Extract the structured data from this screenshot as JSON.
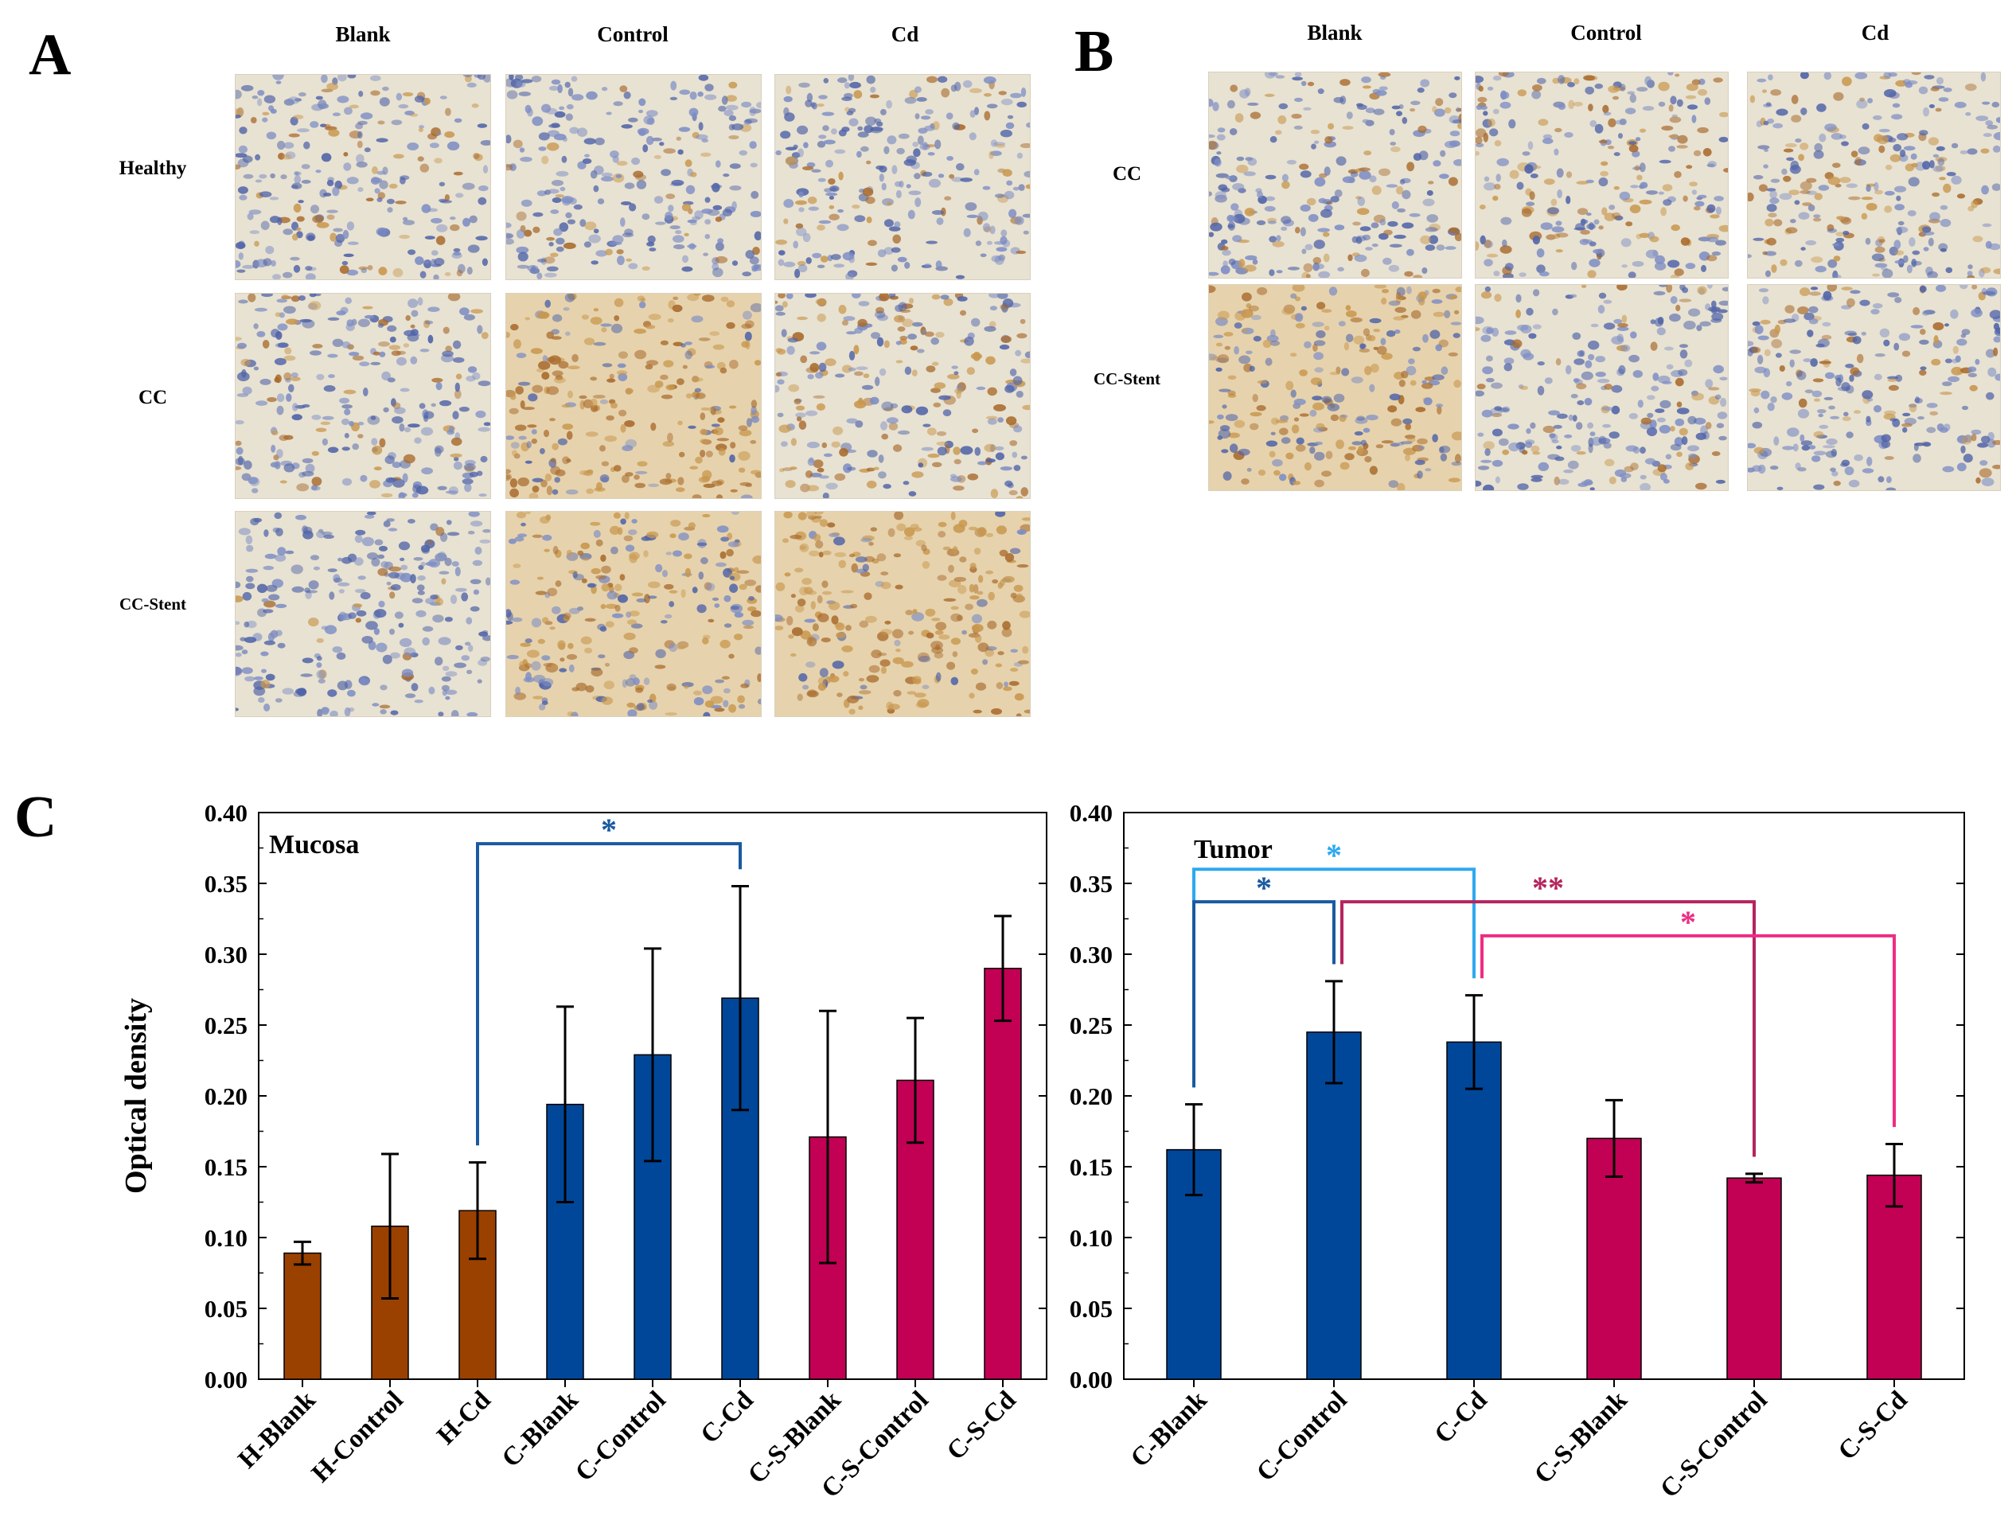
{
  "panels": {
    "A": {
      "letter": "A",
      "columns": [
        "Blank",
        "Control",
        "Cd"
      ],
      "rows": [
        "Healthy",
        "CC",
        "CC-Stent"
      ]
    },
    "B": {
      "letter": "B",
      "columns": [
        "Blank",
        "Control",
        "Cd"
      ],
      "rows": [
        "CC",
        "CC-Stent"
      ]
    },
    "C": {
      "letter": "C"
    }
  },
  "colors": {
    "healthy": "#9b4100",
    "cc": "#00479a",
    "ccstent": "#c20054",
    "sig_dark_blue": "#1a5aa0",
    "sig_light_blue": "#2ea8f0",
    "sig_magenta": "#b5245d",
    "sig_pink": "#ee2c83"
  },
  "chart_data": [
    {
      "type": "bar",
      "panel_label": "Mucosa",
      "ylabel": "Optical density",
      "ylim": [
        0,
        0.4
      ],
      "yticks": [
        "0.00",
        "0.05",
        "0.10",
        "0.15",
        "0.20",
        "0.25",
        "0.30",
        "0.35",
        "0.40"
      ],
      "categories": [
        "H-Blank",
        "H-Control",
        "H-Cd",
        "C-Blank",
        "C-Control",
        "C-Cd",
        "C-S-Blank",
        "C-S-Control",
        "C-S-Cd"
      ],
      "values": [
        0.089,
        0.108,
        0.119,
        0.194,
        0.229,
        0.269,
        0.171,
        0.211,
        0.29
      ],
      "errors": [
        0.008,
        0.051,
        0.034,
        0.069,
        0.075,
        0.079,
        0.089,
        0.044,
        0.037
      ],
      "groups": [
        "healthy",
        "healthy",
        "healthy",
        "cc",
        "cc",
        "cc",
        "ccstent",
        "ccstent",
        "ccstent"
      ],
      "significance": [
        {
          "from": "H-Cd",
          "to": "C-Cd",
          "label": "*",
          "color": "sig_dark_blue",
          "level": 0.378
        }
      ]
    },
    {
      "type": "bar",
      "panel_label": "Tumor",
      "ylabel": "",
      "ylim": [
        0,
        0.4
      ],
      "yticks": [
        "0.00",
        "0.05",
        "0.10",
        "0.15",
        "0.20",
        "0.25",
        "0.30",
        "0.35",
        "0.40"
      ],
      "categories": [
        "C-Blank",
        "C-Control",
        "C-Cd",
        "C-S-Blank",
        "C-S-Control",
        "C-S-Cd"
      ],
      "values": [
        0.162,
        0.245,
        0.238,
        0.17,
        0.142,
        0.144
      ],
      "errors": [
        0.032,
        0.036,
        0.033,
        0.027,
        0.003,
        0.022
      ],
      "groups": [
        "cc",
        "cc",
        "cc",
        "ccstent",
        "ccstent",
        "ccstent"
      ],
      "significance": [
        {
          "from": "C-Blank",
          "to": "C-Cd",
          "label": "*",
          "color": "sig_light_blue",
          "level": 0.36
        },
        {
          "from": "C-Blank",
          "to": "C-Control",
          "label": "*",
          "color": "sig_dark_blue",
          "level": 0.337
        },
        {
          "from": "C-Control",
          "to": "C-S-Control",
          "label": "**",
          "color": "sig_magenta",
          "level": 0.337
        },
        {
          "from": "C-Cd",
          "to": "C-S-Cd",
          "label": "*",
          "color": "sig_pink",
          "level": 0.313
        }
      ]
    }
  ]
}
